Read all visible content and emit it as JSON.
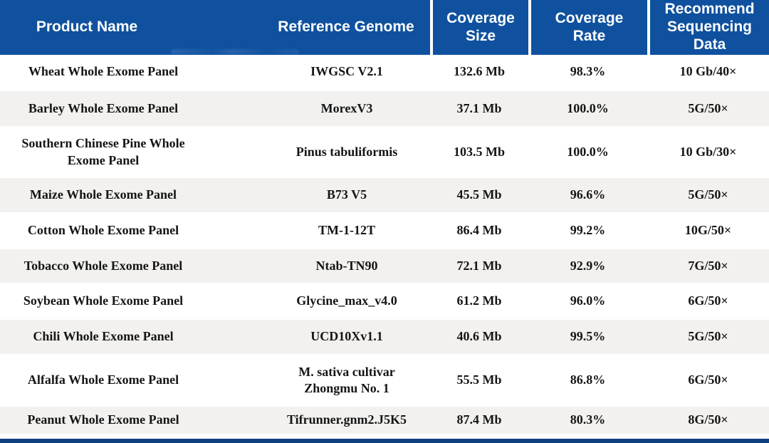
{
  "table": {
    "columns": [
      {
        "label": "Product Name"
      },
      {
        "label": "Reference Genome"
      },
      {
        "label": "Coverage Size"
      },
      {
        "label": "Coverage Rate"
      },
      {
        "label": "Recommend Sequencing Data"
      }
    ],
    "rows": [
      {
        "product": "Wheat Whole Exome Panel",
        "genome": "IWGSC V2.1",
        "coverage_size": "132.6 Mb",
        "coverage_rate": "98.3%",
        "recommend_data": "10 Gb/40×"
      },
      {
        "product": "Barley Whole Exome Panel",
        "genome": "MorexV3",
        "coverage_size": "37.1 Mb",
        "coverage_rate": "100.0%",
        "recommend_data": "5G/50×"
      },
      {
        "product": "Southern Chinese Pine Whole\nExome Panel",
        "genome": "Pinus tabuliformis",
        "coverage_size": "103.5 Mb",
        "coverage_rate": "100.0%",
        "recommend_data": "10 Gb/30×"
      },
      {
        "product": "Maize Whole Exome Panel",
        "genome": "B73 V5",
        "coverage_size": "45.5 Mb",
        "coverage_rate": "96.6%",
        "recommend_data": "5G/50×"
      },
      {
        "product": "Cotton Whole Exome Panel",
        "genome": "TM-1-12T",
        "coverage_size": "86.4 Mb",
        "coverage_rate": "99.2%",
        "recommend_data": "10G/50×"
      },
      {
        "product": "Tobacco Whole Exome Panel",
        "genome": "Ntab-TN90",
        "coverage_size": "72.1 Mb",
        "coverage_rate": "92.9%",
        "recommend_data": "7G/50×"
      },
      {
        "product": "Soybean Whole Exome Panel",
        "genome": "Glycine_max_v4.0",
        "coverage_size": "61.2 Mb",
        "coverage_rate": "96.0%",
        "recommend_data": "6G/50×"
      },
      {
        "product": "Chili Whole Exome Panel",
        "genome": "UCD10Xv1.1",
        "coverage_size": "40.6 Mb",
        "coverage_rate": "99.5%",
        "recommend_data": "5G/50×"
      },
      {
        "product": "Alfalfa Whole Exome Panel",
        "genome": "M. sativa cultivar\nZhongmu No. 1",
        "coverage_size": "55.5 Mb",
        "coverage_rate": "86.8%",
        "recommend_data": "6G/50×"
      },
      {
        "product": "Peanut Whole Exome Panel",
        "genome": "Tifrunner.gnm2.J5K5",
        "coverage_size": "87.4 Mb",
        "coverage_rate": "80.3%",
        "recommend_data": "8G/50×"
      }
    ]
  },
  "colors": {
    "header_bg": "#0F519E",
    "header_text": "#FFFFFF",
    "stripe": "#F2F1EF",
    "body_text": "#151515",
    "footer_bar": "#0D3E7E"
  }
}
